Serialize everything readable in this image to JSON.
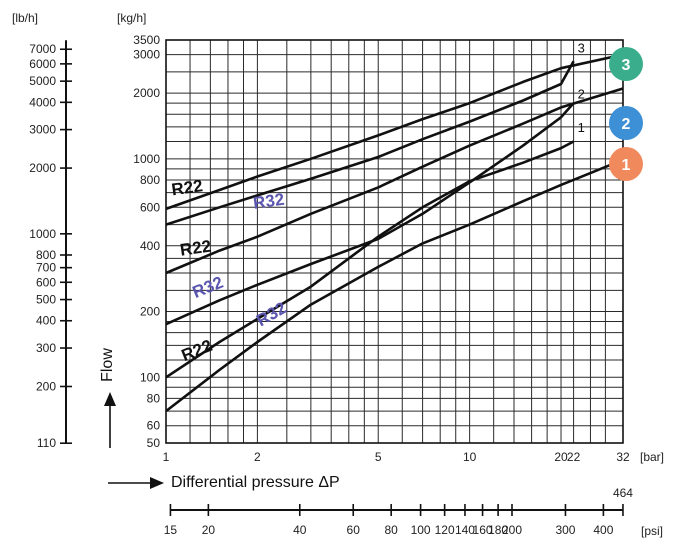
{
  "chart_data": {
    "type": "line",
    "title": "",
    "xlabel": "Differential pressure ΔP",
    "ylabel": "Flow",
    "x_unit": "[bar]",
    "y_unit": "[kg/h]",
    "lb_unit": "[lb/h]",
    "psi_unit": "[psi]",
    "x_scale": "log",
    "y_scale": "log",
    "xlim": [
      1,
      32
    ],
    "ylim": [
      50,
      3500
    ],
    "grid": true,
    "legend": "none",
    "x_ticks": [
      {
        "v": 1,
        "label": "1"
      },
      {
        "v": 2,
        "label": "2"
      },
      {
        "v": 5,
        "label": "5"
      },
      {
        "v": 10,
        "label": "10"
      },
      {
        "v": 20,
        "label": "20"
      },
      {
        "v": 22,
        "label": "22"
      },
      {
        "v": 32,
        "label": "32"
      }
    ],
    "x_grid": [
      1,
      1.2,
      1.4,
      1.6,
      1.8,
      2,
      2.5,
      3,
      3.5,
      4,
      4.5,
      5,
      6,
      7,
      8,
      9,
      10,
      12,
      14,
      16,
      18,
      20,
      22,
      25,
      28,
      32
    ],
    "y_ticks": [
      {
        "v": 50,
        "label": "50"
      },
      {
        "v": 60,
        "label": "60"
      },
      {
        "v": 80,
        "label": "80"
      },
      {
        "v": 100,
        "label": "100"
      },
      {
        "v": 200,
        "label": "200"
      },
      {
        "v": 400,
        "label": "400"
      },
      {
        "v": 600,
        "label": "600"
      },
      {
        "v": 800,
        "label": "800"
      },
      {
        "v": 1000,
        "label": "1000"
      },
      {
        "v": 2000,
        "label": "2000"
      },
      {
        "v": 3000,
        "label": "3000"
      },
      {
        "v": 3500,
        "label": "3500"
      }
    ],
    "y_grid": [
      50,
      60,
      70,
      80,
      90,
      100,
      120,
      140,
      160,
      180,
      200,
      250,
      300,
      350,
      400,
      500,
      600,
      700,
      800,
      900,
      1000,
      1200,
      1400,
      1600,
      1800,
      2000,
      2500,
      3000,
      3500
    ],
    "lb_ticks": [
      {
        "v": 110,
        "label": "110"
      },
      {
        "v": 200,
        "label": "200"
      },
      {
        "v": 300,
        "label": "300"
      },
      {
        "v": 400,
        "label": "400"
      },
      {
        "v": 500,
        "label": "500"
      },
      {
        "v": 600,
        "label": "600"
      },
      {
        "v": 700,
        "label": "700"
      },
      {
        "v": 800,
        "label": "800"
      },
      {
        "v": 1000,
        "label": "1000"
      },
      {
        "v": 2000,
        "label": "2000"
      },
      {
        "v": 3000,
        "label": "3000"
      },
      {
        "v": 4000,
        "label": "4000"
      },
      {
        "v": 5000,
        "label": "5000"
      },
      {
        "v": 6000,
        "label": "6000"
      },
      {
        "v": 7000,
        "label": "7000"
      }
    ],
    "psi_ticks": [
      {
        "v": 15,
        "label": "15"
      },
      {
        "v": 20,
        "label": "20"
      },
      {
        "v": 40,
        "label": "40"
      },
      {
        "v": 60,
        "label": "60"
      },
      {
        "v": 80,
        "label": "80"
      },
      {
        "v": 100,
        "label": "100"
      },
      {
        "v": 120,
        "label": "120"
      },
      {
        "v": 140,
        "label": "140"
      },
      {
        "v": 160,
        "label": "160"
      },
      {
        "v": 180,
        "label": "180"
      },
      {
        "v": 200,
        "label": "200"
      },
      {
        "v": 300,
        "label": "300"
      },
      {
        "v": 400,
        "label": "400"
      },
      {
        "v": 464,
        "label": "464"
      }
    ],
    "series": [
      {
        "id": "1",
        "label": "1",
        "color": "#111111",
        "points": [
          [
            1,
            70
          ],
          [
            1.5,
            108
          ],
          [
            2,
            145
          ],
          [
            3,
            215
          ],
          [
            5,
            320
          ],
          [
            7,
            410
          ],
          [
            10,
            500
          ],
          [
            15,
            640
          ],
          [
            20,
            760
          ],
          [
            25,
            860
          ],
          [
            32,
            990
          ]
        ]
      },
      {
        "id": "1b",
        "label": "1",
        "color": "#111111",
        "points": [
          [
            1,
            100
          ],
          [
            1.5,
            145
          ],
          [
            2,
            185
          ],
          [
            3,
            260
          ],
          [
            4,
            350
          ],
          [
            5,
            440
          ],
          [
            7,
            600
          ],
          [
            10,
            790
          ],
          [
            15,
            960
          ],
          [
            20,
            1120
          ],
          [
            22,
            1200
          ]
        ]
      },
      {
        "id": "2",
        "label": "2",
        "color": "#111111",
        "points": [
          [
            1,
            175
          ],
          [
            1.5,
            225
          ],
          [
            2,
            265
          ],
          [
            3,
            330
          ],
          [
            5,
            430
          ],
          [
            7,
            560
          ],
          [
            10,
            780
          ],
          [
            15,
            1150
          ],
          [
            20,
            1550
          ],
          [
            22,
            1800
          ]
        ]
      },
      {
        "id": "2b",
        "label": "2",
        "color": "#111111",
        "points": [
          [
            1,
            300
          ],
          [
            1.5,
            380
          ],
          [
            2,
            440
          ],
          [
            3,
            560
          ],
          [
            5,
            740
          ],
          [
            7,
            920
          ],
          [
            10,
            1150
          ],
          [
            15,
            1450
          ],
          [
            20,
            1720
          ],
          [
            32,
            2100
          ]
        ]
      },
      {
        "id": "3",
        "label": "3",
        "color": "#111111",
        "points": [
          [
            1,
            500
          ],
          [
            1.5,
            600
          ],
          [
            2,
            680
          ],
          [
            3,
            810
          ],
          [
            5,
            1020
          ],
          [
            7,
            1230
          ],
          [
            10,
            1480
          ],
          [
            15,
            1850
          ],
          [
            20,
            2200
          ],
          [
            22,
            2800
          ]
        ]
      },
      {
        "id": "3b",
        "label": "3",
        "color": "#111111",
        "points": [
          [
            1,
            590
          ],
          [
            1.5,
            720
          ],
          [
            2,
            830
          ],
          [
            3,
            1000
          ],
          [
            5,
            1280
          ],
          [
            7,
            1520
          ],
          [
            10,
            1800
          ],
          [
            15,
            2250
          ],
          [
            20,
            2600
          ],
          [
            32,
            3000
          ]
        ]
      }
    ],
    "curve_numbers": [
      {
        "label": "3",
        "x": 22,
        "y": 3000
      },
      {
        "label": "2",
        "x": 22,
        "y": 1850
      },
      {
        "label": "1",
        "x": 22,
        "y": 1300
      }
    ],
    "refrigerant_labels": [
      {
        "text": "R22",
        "x": 1.05,
        "y": 680,
        "color": "#111111",
        "angle": -8
      },
      {
        "text": "R32",
        "x": 1.95,
        "y": 590,
        "color": "#5b57b0",
        "angle": -8
      },
      {
        "text": "R22",
        "x": 1.12,
        "y": 360,
        "color": "#111111",
        "angle": -8
      },
      {
        "text": "R32",
        "x": 1.25,
        "y": 230,
        "color": "#5b57b0",
        "angle": -22
      },
      {
        "text": "R22",
        "x": 1.15,
        "y": 118,
        "color": "#111111",
        "angle": -22
      },
      {
        "text": "R32",
        "x": 2.05,
        "y": 170,
        "color": "#5b57b0",
        "angle": -30
      }
    ],
    "badges": [
      {
        "label": "3",
        "color": "#3aae8c",
        "row": 0
      },
      {
        "label": "2",
        "color": "#3d8fd6",
        "row": 1
      },
      {
        "label": "1",
        "color": "#f08a5d",
        "row": 2
      }
    ]
  }
}
